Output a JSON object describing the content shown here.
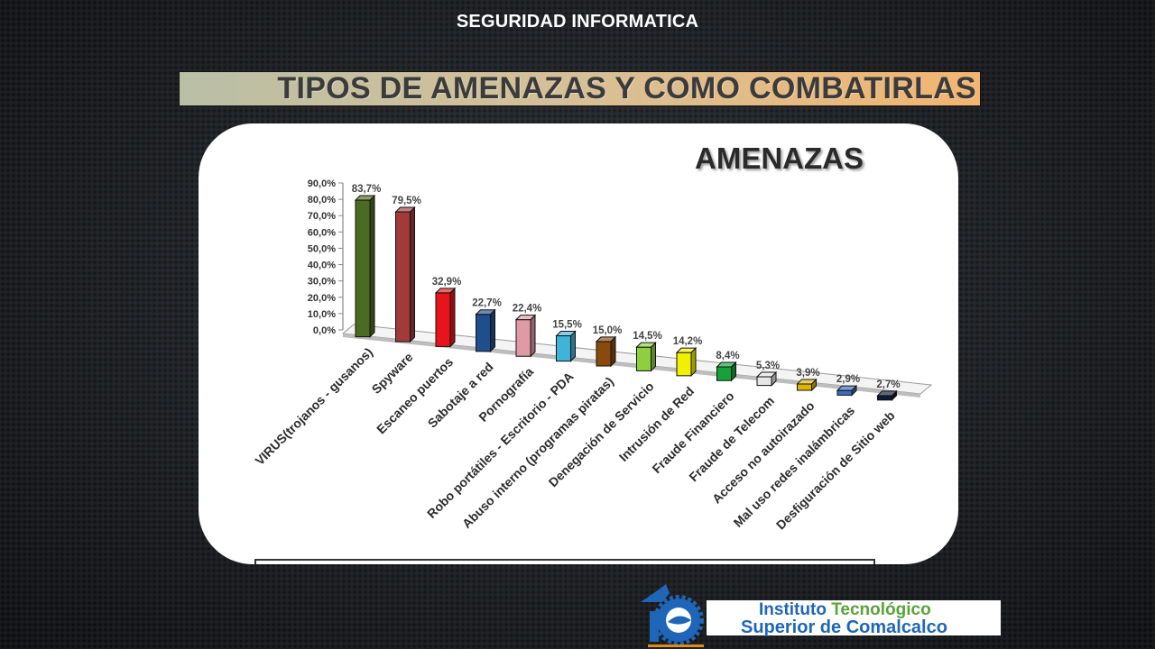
{
  "header": {
    "subject": "SEGURIDAD INFORMATICA",
    "title": "TIPOS DE AMENAZAS Y COMO COMBATIRLAS"
  },
  "chart_data": {
    "type": "bar",
    "style": "3d-columns",
    "title": "AMENAZAS",
    "xlabel": "",
    "ylabel": "",
    "ylim": [
      0,
      90
    ],
    "yticks": [
      "0,0%",
      "10,0%",
      "20,0%",
      "30,0%",
      "40,0%",
      "50,0%",
      "60,0%",
      "70,0%",
      "80,0%",
      "90,0%"
    ],
    "grid": false,
    "legend": "none",
    "categories": [
      "VIRUS(trojanos - gusanos)",
      "Spyware",
      "Escaneo puertos",
      "Sabotaje a red",
      "Pornografía",
      "Robo portátiles - Escritorio - PDA",
      "Abuso interno (programas piratas)",
      "Denegación de Servicio",
      "Intrusión de Red",
      "Fraude Financiero",
      "Fraude de Telecom",
      "Acceso no autoirazado",
      "Mal uso redes inalámbricas",
      "Desfiguración de Sitio web"
    ],
    "values": [
      83.7,
      79.5,
      32.9,
      22.7,
      22.4,
      15.5,
      15.0,
      14.5,
      14.2,
      8.4,
      5.3,
      3.9,
      2.9,
      2.7
    ],
    "value_labels": [
      "83,7%",
      "79,5%",
      "32,9%",
      "22,7%",
      "22,4%",
      "15,5%",
      "15,0%",
      "14,5%",
      "14,2%",
      "8,4%",
      "5,3%",
      "3,9%",
      "2,9%",
      "2,7%"
    ],
    "colors": [
      "#4b6a22",
      "#a23a3a",
      "#e8141c",
      "#1f4e8c",
      "#e09aa6",
      "#3fb4d8",
      "#8a4a0c",
      "#8dcf3e",
      "#f2f000",
      "#13a339",
      "#e6e6e6",
      "#e0b400",
      "#3b6dbf",
      "#0d1a33"
    ]
  },
  "logo": {
    "line1_a": "Instituto",
    "line1_b": "Tecnológico",
    "line2": "Superior de Comalcalco",
    "colors": {
      "blue": "#1f66b8",
      "green": "#58a33a"
    }
  }
}
